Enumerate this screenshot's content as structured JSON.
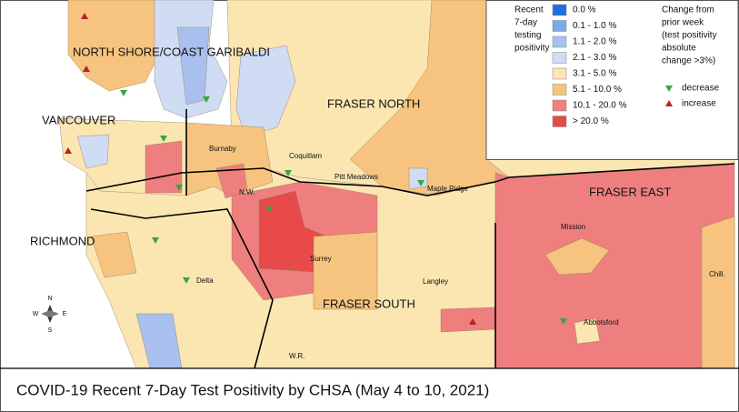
{
  "title": "COVID-19 Recent 7-Day Test Positivity by CHSA (May 4 to 10, 2021)",
  "legend": {
    "title_lines": [
      "Recent",
      "7-day",
      "testing",
      "positivity"
    ],
    "items": [
      {
        "label": "0.0 %",
        "color": "#1f6fe0"
      },
      {
        "label": "0.1 - 1.0 %",
        "color": "#7fa8e6"
      },
      {
        "label": "1.1 - 2.0 %",
        "color": "#a9c0ee"
      },
      {
        "label": "2.1 - 3.0 %",
        "color": "#cfdcf4"
      },
      {
        "label": "3.1 - 5.0 %",
        "color": "#fbe6b2"
      },
      {
        "label": "5.1 - 10.0 %",
        "color": "#f6c47e"
      },
      {
        "label": "10.1 - 20.0 %",
        "color": "#ef7f7f"
      },
      {
        "label": "> 20.0 %",
        "color": "#e84a4a"
      }
    ]
  },
  "change_legend": {
    "title_lines": [
      "Change from",
      "prior week",
      "(test positivity",
      "absolute",
      "change >3%)"
    ],
    "items": [
      {
        "label": "decrease",
        "color": "#3aa63a"
      },
      {
        "label": "increase",
        "color": "#b8202a"
      }
    ]
  },
  "regions": [
    "NORTH SHORE/COAST GARIBALDI",
    "VANCOUVER",
    "FRASER NORTH",
    "RICHMOND",
    "FRASER EAST",
    "FRASER SOUTH"
  ],
  "places": [
    "Burnaby",
    "Coquitlam",
    "Pitt Meadows",
    "Maple Ridge",
    "N.W.",
    "Surrey",
    "Delta",
    "Langley",
    "Mission",
    "Abbotsford",
    "Chill.",
    "W.R."
  ],
  "compass": [
    "N",
    "E",
    "S",
    "W"
  ]
}
